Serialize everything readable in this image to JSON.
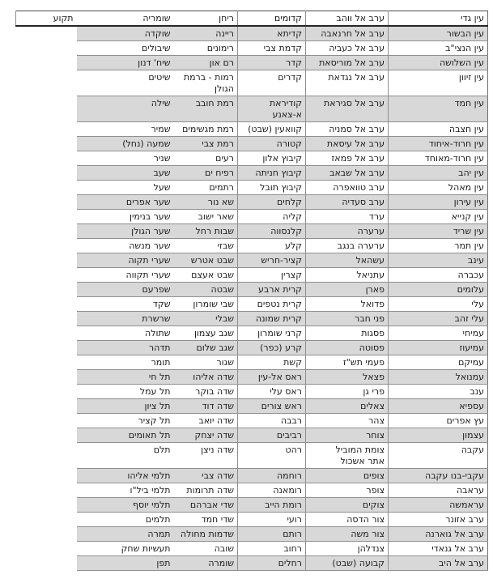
{
  "document": {
    "direction": "rtl",
    "language": "he",
    "description_columns": 6,
    "colors": {
      "stripe": "#d8d8d8",
      "gridline": "#8f8f8f",
      "heavy_rule": "#262626",
      "text": "#1c1c1c",
      "background": "#ffffff"
    }
  },
  "table": {
    "rows": [
      [
        "עין גדי",
        "ערב אל ווהב",
        "קדומים",
        "ריחן",
        "שומריה",
        "תקוע"
      ],
      [
        "עין הבשור",
        "ערב אל חרנאבה",
        "קדיתא",
        "ריינה",
        "שוקדה",
        ""
      ],
      [
        "עין הנצי\"ב",
        "ערב אל כעביה",
        "קדמת צבי",
        "רימונים",
        "שיבולים",
        ""
      ],
      [
        "עין השלושה",
        "ערב אל מוריסאת",
        "קדר",
        "רם און",
        "שיח' דנון",
        ""
      ],
      [
        "עין זיוון",
        "ערב אל נגדאת",
        "קדרים",
        "רמות - ברמת\nהגולן",
        "שיטים",
        ""
      ],
      [
        "עין חמד",
        "ערב אל סגיראת",
        "קודיראת א-צאנע",
        "רמת חובב",
        "שילה",
        ""
      ],
      [
        "עין חצבה",
        "ערב אל סמניה",
        "קוואעין (שבט)",
        "רמת מגשימים",
        "שמיר",
        ""
      ],
      [
        "עין חרוד-איחוד",
        "ערב אל עיסאת",
        "קטורה",
        "רמת צבי",
        "שמעה (נחל)",
        ""
      ],
      [
        "עין חרוד-מאוחד",
        "ערב אל פמאז",
        "קיבוץ אלון",
        "רעים",
        "שניר",
        ""
      ],
      [
        "עין יהב",
        "ערב אל שבאב",
        "קיבוץ חניתה",
        "רפיח ים",
        "שעב",
        ""
      ],
      [
        "עין מאהל",
        "ערב טוואפרה",
        "קיבוץ תובל",
        "רתמים",
        "שעל",
        ""
      ],
      [
        "עין עירון",
        "ערב סעדיה",
        "קלחים",
        "שא נור",
        "שער אפרים",
        ""
      ],
      [
        "עין קנייא",
        "ערד",
        "קליה",
        "שאר ישוב",
        "שער בנימין",
        ""
      ],
      [
        "עין שריד",
        "ערערה",
        "קלנסווה",
        "שבות רחל",
        "שער הגולן",
        ""
      ],
      [
        "עין תמר",
        "ערערה בנגב",
        "קלע",
        "שבזי",
        "שער מנשה",
        ""
      ],
      [
        "עינב",
        "עשהאל",
        "קציר-חריש",
        "שבט אטרש",
        "שערי תקוה",
        ""
      ],
      [
        "עכברה",
        "עתניאל",
        "קצרין",
        "שבט אעצם",
        "שערי תקווה",
        ""
      ],
      [
        "עלומים",
        "פארן",
        "קרית ארבע",
        "שבטה",
        "שפרעם",
        ""
      ],
      [
        "עלי",
        "פדואל",
        "קרית נטפים",
        "שבי שומרון",
        "שקד",
        ""
      ],
      [
        "עלי זהב",
        "פני חבר",
        "קרית שמונה",
        "שבלי",
        "שרשרת",
        ""
      ],
      [
        "עמיחי",
        "פסגות",
        "קרני שומרון",
        "שגב עצמון",
        "שתולה",
        ""
      ],
      [
        "עמיעוז",
        "פסוטה",
        "קרע (כפר)",
        "שגב שלום",
        "תדהר",
        ""
      ],
      [
        "עמיקם",
        "פעמי תש\"ז",
        "קשת",
        "שגור",
        "תומר",
        ""
      ],
      [
        "עמנואל",
        "פצאל",
        "ראס אל-עין",
        "שדה אליהו",
        "תל חי",
        ""
      ],
      [
        "ענב",
        "פרי גן",
        "ראס עלי",
        "שדה בוקר",
        "תל עמל",
        ""
      ],
      [
        "עספיא",
        "צאלים",
        "ראש צורים",
        "שדה דוד",
        "תל ציון",
        ""
      ],
      [
        "עץ אפרים",
        "צהר",
        "רבבה",
        "שדה יואב",
        "תל קציר",
        ""
      ],
      [
        "עצמון",
        "צוחר",
        "רביבים",
        "שדה יצחק",
        "תל תאומים",
        ""
      ],
      [
        "עקבה",
        "צומת המוביל\nאתר אשכול",
        "רהט",
        "שדה ניצן",
        "תלם",
        ""
      ],
      [
        "עקבי-בנו עקבה",
        "צופים",
        "רוחמה",
        "שדה צבי",
        "תלמי אליהו",
        ""
      ],
      [
        "עראבה",
        "צופר",
        "רומאנה",
        "שדה תרומות",
        "תלמי ביל\"ו",
        ""
      ],
      [
        "עראמשה",
        "צוקים",
        "רומת הייב",
        "שדי אברהם",
        "תלמי יוסף",
        ""
      ],
      [
        "ערב אזונר",
        "צור הדסה",
        "רועי",
        "שדי חמד",
        "תלמים",
        ""
      ],
      [
        "ערב אל גוארנה",
        "צור משה",
        "רותם",
        "שדמות מחולה",
        "תמרה",
        ""
      ],
      [
        "ערב אל גנאדי",
        "צנדלהן",
        "רחוב",
        "שובה",
        "תעשיות שחק",
        ""
      ],
      [
        "ערב אל היב",
        "קבועה (שבט)",
        "רחלים",
        "שומרה",
        "תפן",
        ""
      ]
    ]
  }
}
